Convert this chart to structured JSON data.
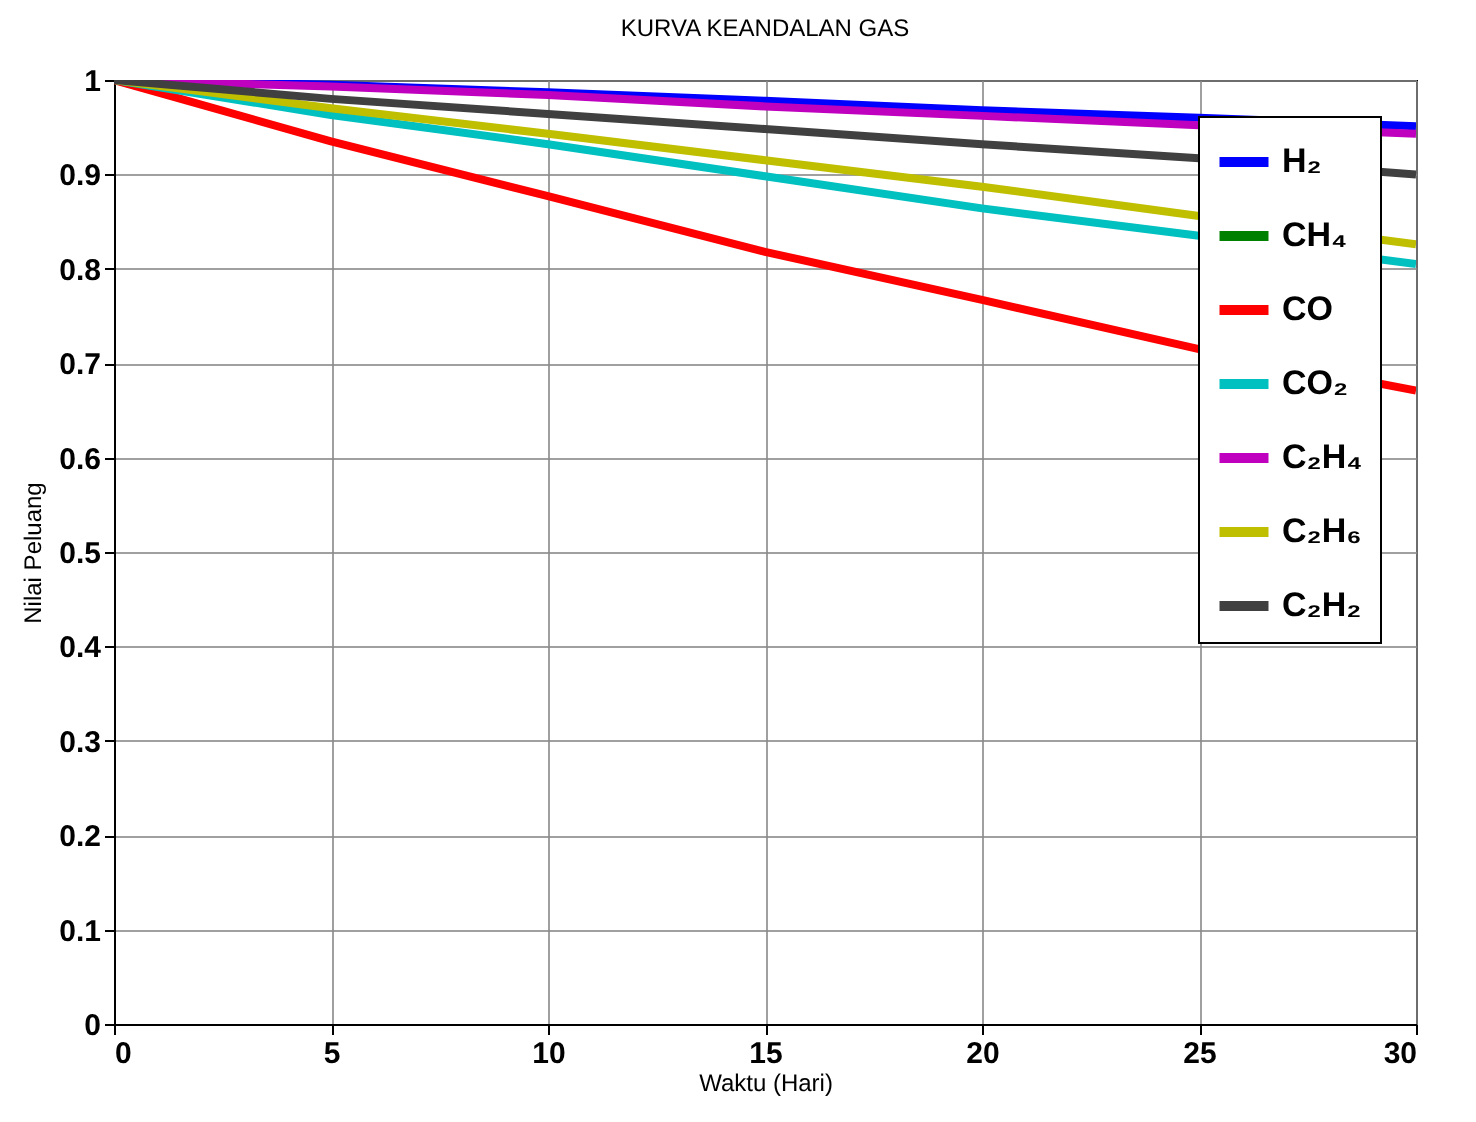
{
  "chart_data": {
    "type": "line",
    "title": "KURVA KEANDALAN GAS",
    "xlabel": "Waktu (Hari)",
    "ylabel": "Nilai Peluang",
    "x": [
      0,
      5,
      10,
      15,
      20,
      25,
      30
    ],
    "series": [
      {
        "name": "H₂",
        "color": "#0000ff",
        "values": [
          1,
          0.995,
          0.987,
          0.978,
          0.968,
          0.96,
          0.951
        ]
      },
      {
        "name": "CH₄",
        "color": "#008000",
        "values": [
          null,
          null,
          null,
          null,
          null,
          null,
          null
        ]
      },
      {
        "name": "CO",
        "color": "#ff0000",
        "values": [
          1,
          0.935,
          0.877,
          0.818,
          0.767,
          0.715,
          0.671
        ]
      },
      {
        "name": "CO₂",
        "color": "#00c0c0",
        "values": [
          1,
          0.963,
          0.932,
          0.898,
          0.864,
          0.835,
          0.805
        ]
      },
      {
        "name": "C₂H₄",
        "color": "#bf00bf",
        "values": [
          1,
          0.993,
          0.984,
          0.972,
          0.962,
          0.952,
          0.943
        ]
      },
      {
        "name": "C₂H₆",
        "color": "#bfbf00",
        "values": [
          1,
          0.97,
          0.943,
          0.915,
          0.887,
          0.856,
          0.826
        ]
      },
      {
        "name": "C₂H₂",
        "color": "#404040",
        "values": [
          1,
          0.98,
          0.964,
          0.948,
          0.932,
          0.917,
          0.9
        ]
      }
    ],
    "xlim": [
      0,
      30
    ],
    "xticks": [
      0,
      5,
      10,
      15,
      20,
      25,
      30
    ],
    "ylim": [
      0,
      1
    ],
    "yticks": [
      0,
      0.1,
      0.2,
      0.3,
      0.4,
      0.5,
      0.6,
      0.7,
      0.8,
      0.9,
      1
    ],
    "grid": true,
    "legend": "top right"
  }
}
